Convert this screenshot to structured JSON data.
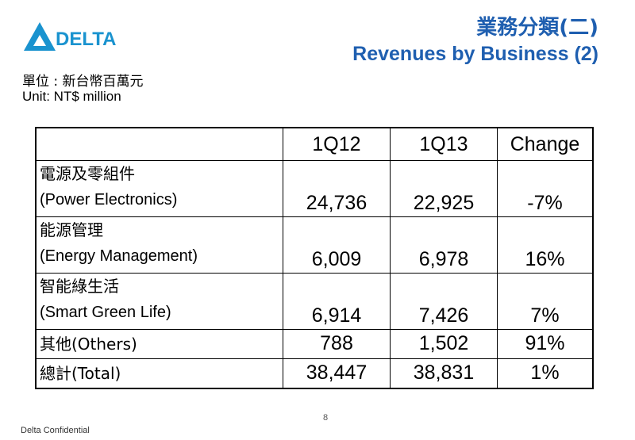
{
  "brand": {
    "logo_text": "DELTA",
    "color": "#1a93cf"
  },
  "title": {
    "zh": "業務分類(二)",
    "en": "Revenues by Business (2)",
    "color": "#1f5fb0"
  },
  "unit": {
    "zh": "單位 : 新台幣百萬元",
    "en": "Unit: NT$ million"
  },
  "table": {
    "headers": [
      "",
      "1Q12",
      "1Q13",
      "Change"
    ],
    "rows": [
      {
        "zh": "電源及零組件",
        "en": "(Power Electronics)",
        "q12": "24,736",
        "q13": "22,925",
        "change": "-7%"
      },
      {
        "zh": "能源管理",
        "en": "(Energy Management)",
        "q12": "6,009",
        "q13": "6,978",
        "change": "16%"
      },
      {
        "zh": "智能綠生活",
        "en": "(Smart Green Life)",
        "q12": "6,914",
        "q13": "7,426",
        "change": "7%"
      },
      {
        "label": "其他(Others)",
        "q12": "788",
        "q13": "1,502",
        "change": "91%"
      },
      {
        "label": "總計(Total)",
        "q12": "38,447",
        "q13": "38,831",
        "change": "1%"
      }
    ]
  },
  "page_number": "8",
  "footer": "Delta Confidential"
}
